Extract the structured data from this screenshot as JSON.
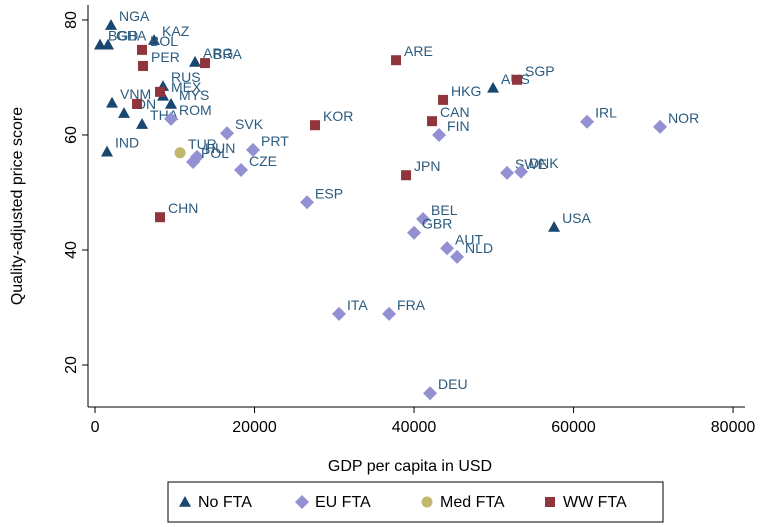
{
  "chart_data": {
    "type": "scatter",
    "xlabel": "GDP per capita in USD",
    "ylabel": "Quality-adjusted price score",
    "xlim": [
      -880,
      81500
    ],
    "ylim": [
      12.7,
      82.6
    ],
    "xticks": [
      0,
      20000,
      40000,
      60000,
      80000
    ],
    "yticks": [
      20,
      40,
      60,
      80
    ],
    "grid": false,
    "legend": "bottom",
    "series": [
      {
        "name": "No FTA",
        "color": "#1a476f",
        "marker": "triangle",
        "labels": [
          "NGA",
          "BGD",
          "GHA",
          "KAZ",
          "ARG",
          "RUS",
          "MEX",
          "MYS",
          "VNM",
          "IDN",
          "THA",
          "IND",
          "AUS",
          "USA"
        ],
        "x": [
          2006,
          627,
          1630,
          7399,
          12540,
          8527,
          8527,
          9530,
          2132,
          3637,
          5894,
          1505,
          49909,
          57559
        ],
        "values": [
          79.1,
          75.7,
          75.7,
          76.5,
          72.7,
          68.5,
          66.8,
          65.4,
          65.6,
          63.8,
          61.9,
          57.1,
          68.2,
          44.0
        ]
      },
      {
        "name": "EU FTA",
        "color": "#9391d1",
        "marker": "diamond",
        "labels": [
          "ROM",
          "SVK",
          "HUN",
          "POL",
          "PRT",
          "CZE",
          "ESP",
          "BEL",
          "GBR",
          "AUT",
          "NLD",
          "ITA",
          "FRA",
          "DEU",
          "SWE",
          "DNK",
          "FIN",
          "IRL",
          "NOR"
        ],
        "x": [
          9530,
          16553,
          12791,
          12289,
          19813,
          18308,
          26585,
          41131,
          40003,
          44141,
          45395,
          30598,
          36868,
          42009,
          51665,
          53420,
          43138,
          61697,
          70851
        ],
        "values": [
          62.8,
          60.3,
          56.2,
          55.3,
          57.4,
          53.9,
          48.3,
          45.4,
          43.0,
          40.3,
          38.8,
          28.9,
          28.9,
          15.1,
          53.4,
          53.6,
          60.0,
          62.3,
          61.4
        ]
      },
      {
        "name": "Med FTA",
        "color": "#c1b76e",
        "marker": "circle",
        "labels": [
          "TUR"
        ],
        "x": [
          10659
        ],
        "values": [
          56.9
        ]
      },
      {
        "name": "WW FTA",
        "color": "#90353b",
        "marker": "square",
        "labels": [
          "BOL",
          "PER",
          "BRA",
          null,
          null,
          "ARE",
          "HKG",
          "CAN",
          "SGP",
          "KOR",
          "JPN",
          "CHN"
        ],
        "x": [
          5894,
          6019,
          13794,
          5267,
          8151,
          37745,
          43639,
          42260,
          52919,
          27588,
          39000,
          8151
        ],
        "values": [
          74.8,
          72.0,
          72.5,
          65.4,
          67.5,
          73.0,
          66.1,
          62.4,
          69.6,
          61.7,
          53.0,
          45.7
        ]
      }
    ]
  }
}
